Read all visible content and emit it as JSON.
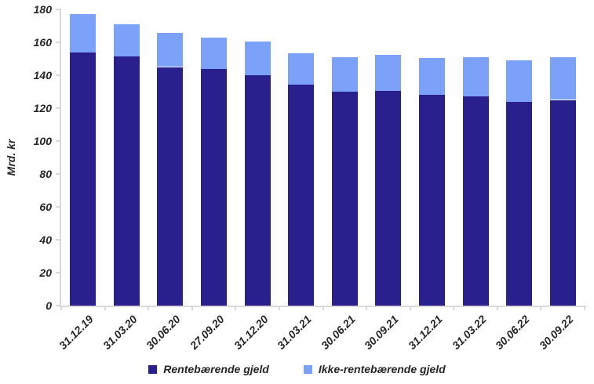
{
  "chart_data": {
    "type": "bar",
    "stacked": true,
    "title": "",
    "ylabel": "Mrd. kr",
    "xlabel": "",
    "ylim": [
      0,
      180
    ],
    "yticks": [
      0,
      20,
      40,
      60,
      80,
      100,
      120,
      140,
      160,
      180
    ],
    "grid": false,
    "legend_position": "bottom",
    "axis_color": "#d9d9d9",
    "text_color": "#262626",
    "categories": [
      "31.12.19",
      "31.03.20",
      "30.06.20",
      "27.09.20",
      "31.12.20",
      "31.03.21",
      "30.06.21",
      "30.09.21",
      "31.12.21",
      "31.03.22",
      "30.06.22",
      "30.09.22"
    ],
    "series": [
      {
        "name": "Rentebærende gjeld",
        "color": "#29208e",
        "values": [
          154,
          151.5,
          145,
          144,
          140,
          134.5,
          130,
          130.5,
          128,
          127,
          124,
          125
        ]
      },
      {
        "name": "Ikke-rentebærende gjeld",
        "color": "#7ca1f8",
        "values": [
          23,
          19.5,
          20.5,
          19,
          20.5,
          19,
          21,
          22,
          22.5,
          24,
          25,
          26
        ]
      }
    ]
  }
}
